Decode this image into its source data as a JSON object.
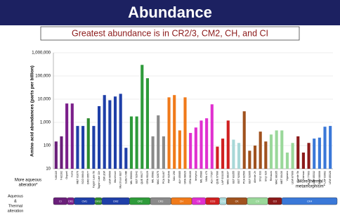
{
  "title": "Abundance",
  "subtitle": "Greatest abundance is in CR2/3, CM2, CH, and CI",
  "chart_data": {
    "type": "bar",
    "log_scale": true,
    "grid": true,
    "y_label": "Amino acid abundances (parts per billion)",
    "ylim": [
      10,
      1000000
    ],
    "yticks": [
      10,
      100,
      {
        "value": 1000,
        "label": "1,000"
      },
      {
        "value": 10000,
        "label": "10,000"
      },
      {
        "value": 100000,
        "label": "100,000"
      },
      {
        "value": 1000000,
        "label": "1,000,000"
      }
    ],
    "categories": [
      "Y-86115",
      "Y-82162",
      "Orgueil",
      "Ivuna",
      "MET 01070",
      "SCO 06043",
      "GRO 95577",
      "Tagish Lake 5b",
      "Tagish Lake 11h",
      "CM LEW",
      "LEW 90500",
      "Murchison",
      "Murchison EET",
      "Sutter's Mill",
      "MIL 090001",
      "EET 92042",
      "QUE 99177",
      "GRA 95229",
      "MIL 05082",
      "MAC 02675",
      "PCA 91467",
      "PAT 91546",
      "SAU 290",
      "ALH 85085",
      "GRA 98029",
      "GRA 06100",
      "Isheyevo",
      "MIL 05080",
      "NWA 470",
      "ALH 77307",
      "QUE 97990",
      "LAP 031135",
      "MAC 88107",
      "EET 83355",
      "EET 92002",
      "PCA 82500",
      "EET 92005",
      "Allende 2h",
      "Shişr 033",
      "Shişr 020",
      "Renazzo",
      "MAC 88105",
      "MET 00430",
      "Vigarano",
      "LEW 87009",
      "Allende 5b",
      "Kainsaz",
      "ALHA 77003",
      "LEW 85332",
      "DOM 08006",
      "LAP 03902",
      "LEW 85328"
    ],
    "values": [
      150,
      250,
      6500,
      6500,
      700,
      700,
      1500,
      700,
      5000,
      15000,
      9000,
      13000,
      17000,
      80,
      1800,
      1800,
      300000,
      80000,
      250,
      2000,
      250,
      12000,
      15000,
      450,
      12000,
      350,
      600,
      1200,
      1500,
      6000,
      90,
      200,
      1200,
      180,
      130,
      3000,
      60,
      100,
      400,
      150,
      300,
      450,
      450,
      50,
      130,
      250,
      50,
      130,
      200,
      220,
      650,
      700
    ],
    "colors": [
      "#6a1f7a",
      "#6a1f7a",
      "#7b1f8a",
      "#7b1f8a",
      "#1f3fa8",
      "#1f3fa8",
      "#2e8b2e",
      "#1f3fa8",
      "#1f3fa8",
      "#1f3fa8",
      "#1f3fa8",
      "#1f3fa8",
      "#1f3fa8",
      "#1f3fa8",
      "#2e9b3a",
      "#2e9b3a",
      "#2e9b3a",
      "#2e9b3a",
      "#8a8a8a",
      "#8a8a8a",
      "#8a8a8a",
      "#f07a1a",
      "#f07a1a",
      "#f07a1a",
      "#f07a1a",
      "#e030d0",
      "#e030d0",
      "#e030d0",
      "#e030d0",
      "#e030d0",
      "#d02020",
      "#d02020",
      "#d02020",
      "#a8d8d8",
      "#a8d8d8",
      "#a0521e",
      "#a0521e",
      "#a0521e",
      "#a0521e",
      "#a0521e",
      "#9ad89a",
      "#9ad89a",
      "#9ad89a",
      "#9ad89a",
      "#9ad89a",
      "#8b1a1a",
      "#8b1a1a",
      "#8b1a1a",
      "#3a78d8",
      "#3a78d8",
      "#3a78d8",
      "#3a78d8"
    ],
    "left_note": [
      "More aqueous",
      "alteration*"
    ],
    "right_note": [
      "More thermal",
      "metamorphism*"
    ],
    "corner_note": [
      "Aqueous",
      "&",
      "Thermal",
      "alteration"
    ],
    "strip": [
      {
        "label": "CI",
        "color": "#6a1f7a"
      },
      {
        "label": "CR1",
        "color": "#7b1f8a"
      },
      {
        "label": "CM1",
        "color": "#1f3fa8"
      },
      {
        "label": "CM1/2",
        "color": "#2e8b2e"
      },
      {
        "label": "CM2",
        "color": "#1f3fa8"
      },
      {
        "label": "CR2",
        "color": "#2e9b3a"
      },
      {
        "label": "CR3",
        "color": "#8a8a8a"
      },
      {
        "label": "CH",
        "color": "#f07a1a"
      },
      {
        "label": "CB",
        "color": "#e030d0"
      },
      {
        "label": "CO3",
        "color": "#d02020"
      },
      {
        "label": "CV3",
        "color": "#a8d8d8"
      },
      {
        "label": "CK",
        "color": "#a0521e"
      },
      {
        "label": "CV",
        "color": "#9ad89a"
      },
      {
        "label": "CO",
        "color": "#8b1a1a"
      },
      {
        "label": "CK4",
        "color": "#3a78d8"
      }
    ]
  }
}
